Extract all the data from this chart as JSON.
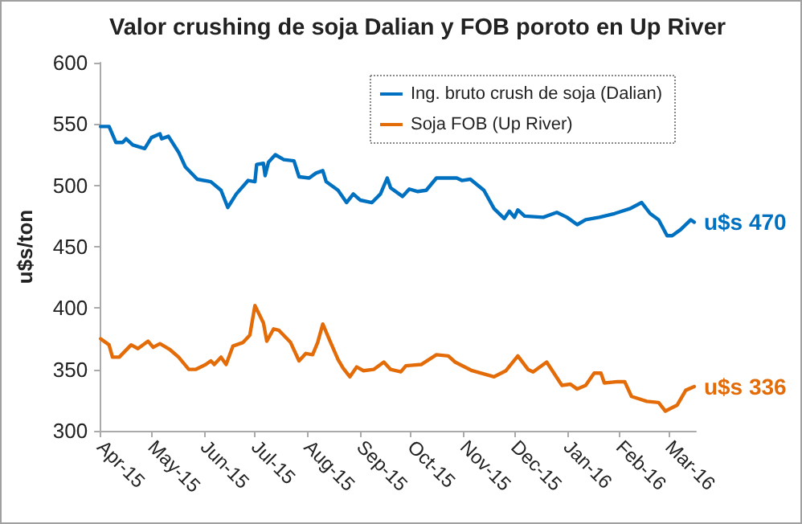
{
  "chart_data": {
    "type": "line",
    "title": "Valor crushing de soja Dalian y FOB poroto en Up River",
    "ylabel": "u$s/ton",
    "xlim": [
      "2015-04-01",
      "2016-03-17"
    ],
    "xticks": [
      {
        "value": "2015-04-01",
        "label": "Apr-15"
      },
      {
        "value": "2015-05-01",
        "label": "May-15"
      },
      {
        "value": "2015-06-01",
        "label": "Jun-15"
      },
      {
        "value": "2015-07-01",
        "label": "Jul-15"
      },
      {
        "value": "2015-08-01",
        "label": "Aug-15"
      },
      {
        "value": "2015-09-01",
        "label": "Sep-15"
      },
      {
        "value": "2015-10-01",
        "label": "Oct-15"
      },
      {
        "value": "2015-11-01",
        "label": "Nov-15"
      },
      {
        "value": "2015-12-01",
        "label": "Dec-15"
      },
      {
        "value": "2016-01-01",
        "label": "Jan-16"
      },
      {
        "value": "2016-02-01",
        "label": "Feb-16"
      },
      {
        "value": "2016-03-01",
        "label": "Mar-16"
      }
    ],
    "ylim": [
      300,
      600
    ],
    "yticks": [
      300,
      350,
      400,
      450,
      500,
      550,
      600
    ],
    "grid": false,
    "legend": "top right",
    "marker": "none",
    "line_style": "solid",
    "series": [
      {
        "name": "Ing. bruto crush de soja (Dalian)",
        "color": "#0070c0",
        "x": [
          "2015-04-01",
          "2015-04-06",
          "2015-04-10",
          "2015-04-14",
          "2015-04-16",
          "2015-04-20",
          "2015-04-27",
          "2015-05-01",
          "2015-05-06",
          "2015-05-07",
          "2015-05-11",
          "2015-05-17",
          "2015-05-21",
          "2015-05-28",
          "2015-06-05",
          "2015-06-11",
          "2015-06-15",
          "2015-06-20",
          "2015-06-27",
          "2015-07-01",
          "2015-07-02",
          "2015-07-06",
          "2015-07-07",
          "2015-07-09",
          "2015-07-13",
          "2015-07-18",
          "2015-07-24",
          "2015-07-27",
          "2015-08-02",
          "2015-08-06",
          "2015-08-10",
          "2015-08-12",
          "2015-08-19",
          "2015-08-24",
          "2015-08-28",
          "2015-09-01",
          "2015-09-08",
          "2015-09-13",
          "2015-09-17",
          "2015-09-19",
          "2015-09-26",
          "2015-09-30",
          "2015-10-05",
          "2015-10-10",
          "2015-10-16",
          "2015-10-28",
          "2015-10-31",
          "2015-11-05",
          "2015-11-13",
          "2015-11-19",
          "2015-11-25",
          "2015-11-28",
          "2015-12-01",
          "2015-12-03",
          "2015-12-07",
          "2015-12-18",
          "2015-12-26",
          "2016-01-01",
          "2016-01-07",
          "2016-01-12",
          "2016-01-20",
          "2016-01-29",
          "2016-02-07",
          "2016-02-14",
          "2016-02-19",
          "2016-02-24",
          "2016-02-29",
          "2016-03-03",
          "2016-03-08",
          "2016-03-14",
          "2016-03-16"
        ],
        "values": [
          548,
          548,
          535,
          535,
          538,
          533,
          530,
          539,
          542,
          538,
          540,
          527,
          515,
          505,
          503,
          496,
          482,
          493,
          504,
          503,
          517,
          518,
          508,
          519,
          525,
          521,
          520,
          507,
          506,
          510,
          512,
          503,
          496,
          486,
          493,
          488,
          486,
          493,
          506,
          498,
          491,
          497,
          495,
          496,
          506,
          506,
          504,
          505,
          496,
          481,
          473,
          479,
          474,
          480,
          475,
          474,
          478,
          474,
          468,
          472,
          474,
          477,
          481,
          486,
          477,
          472,
          459,
          459,
          464,
          472,
          470
        ]
      },
      {
        "name": "Soja FOB (Up River)",
        "color": "#e36c09",
        "x": [
          "2015-04-01",
          "2015-04-06",
          "2015-04-08",
          "2015-04-12",
          "2015-04-19",
          "2015-04-23",
          "2015-04-29",
          "2015-05-02",
          "2015-05-06",
          "2015-05-12",
          "2015-05-17",
          "2015-05-23",
          "2015-05-27",
          "2015-06-02",
          "2015-06-05",
          "2015-06-07",
          "2015-06-11",
          "2015-06-14",
          "2015-06-18",
          "2015-06-24",
          "2015-06-28",
          "2015-07-01",
          "2015-07-06",
          "2015-07-08",
          "2015-07-12",
          "2015-07-15",
          "2015-07-22",
          "2015-07-27",
          "2015-07-31",
          "2015-08-04",
          "2015-08-07",
          "2015-08-10",
          "2015-08-14",
          "2015-08-19",
          "2015-08-22",
          "2015-08-26",
          "2015-08-30",
          "2015-09-03",
          "2015-09-09",
          "2015-09-15",
          "2015-09-19",
          "2015-09-25",
          "2015-09-28",
          "2015-10-07",
          "2015-10-16",
          "2015-10-23",
          "2015-10-27",
          "2015-11-06",
          "2015-11-19",
          "2015-11-26",
          "2015-12-03",
          "2015-12-09",
          "2015-12-12",
          "2015-12-20",
          "2015-12-29",
          "2016-01-03",
          "2016-01-07",
          "2016-01-12",
          "2016-01-17",
          "2016-01-21",
          "2016-01-23",
          "2016-01-31",
          "2016-02-04",
          "2016-02-08",
          "2016-02-17",
          "2016-02-24",
          "2016-02-28",
          "2016-03-06",
          "2016-03-11",
          "2016-03-16"
        ],
        "values": [
          375,
          370,
          360,
          360,
          370,
          367,
          373,
          368,
          371,
          366,
          360,
          350,
          350,
          354,
          357,
          354,
          360,
          354,
          369,
          372,
          378,
          402,
          388,
          373,
          383,
          382,
          372,
          357,
          363,
          362,
          372,
          387,
          374,
          358,
          351,
          344,
          352,
          349,
          350,
          356,
          350,
          348,
          353,
          354,
          362,
          361,
          356,
          349,
          344,
          349,
          361,
          350,
          348,
          356,
          337,
          338,
          334,
          337,
          347,
          347,
          339,
          340,
          340,
          328,
          324,
          323,
          316,
          321,
          333,
          336
        ]
      }
    ],
    "annotations": [
      {
        "text": "u$s 470",
        "x": "2016-03-16",
        "y": 470
      },
      {
        "text": "u$s 336",
        "x": "2016-03-16",
        "y": 336
      }
    ]
  }
}
